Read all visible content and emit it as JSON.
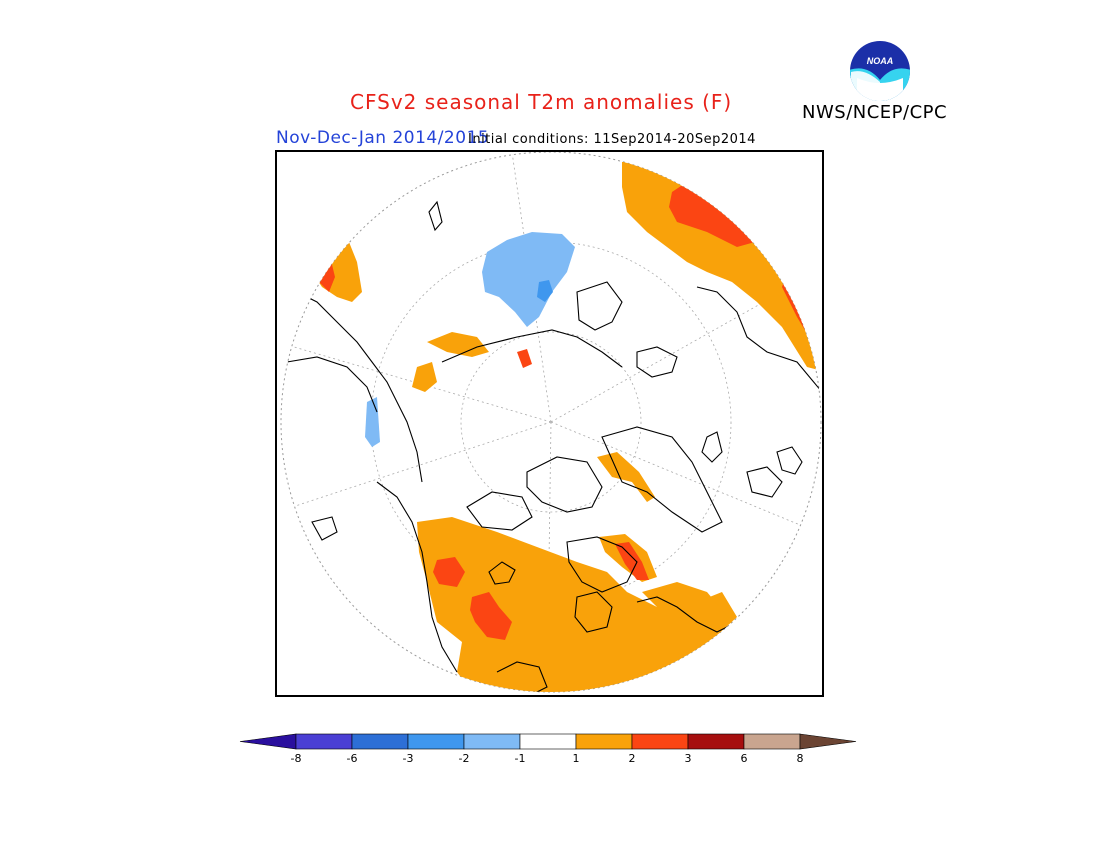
{
  "header": {
    "title": "CFSv2 seasonal T2m anomalies (F)",
    "agency": "NWS/NCEP/CPC",
    "period": "Nov-Dec-Jan 2014/2015",
    "initial_conditions": "Initial conditions: 11Sep2014-20Sep2014",
    "logo_text": "NOAA"
  },
  "legend": {
    "colors": [
      "#2a0f9e",
      "#4a3fd4",
      "#2d6fd6",
      "#3f97ee",
      "#7fbaf5",
      "#ffffff",
      "#f9a20a",
      "#fb4513",
      "#a60e0e",
      "#c9a58f",
      "#6b4433"
    ],
    "tick_labels": [
      "-8",
      "-6",
      "-3",
      "-2",
      "-1",
      "1",
      "2",
      "3",
      "6",
      "8"
    ]
  },
  "map": {
    "projection": "north-polar-stereographic",
    "anomaly_colors": {
      "warm_1_2": "#f9a20a",
      "warm_2_3": "#fb4513",
      "cold_minus2_minus1": "#7fbaf5",
      "cold_minus3_minus2": "#3f97ee"
    }
  }
}
